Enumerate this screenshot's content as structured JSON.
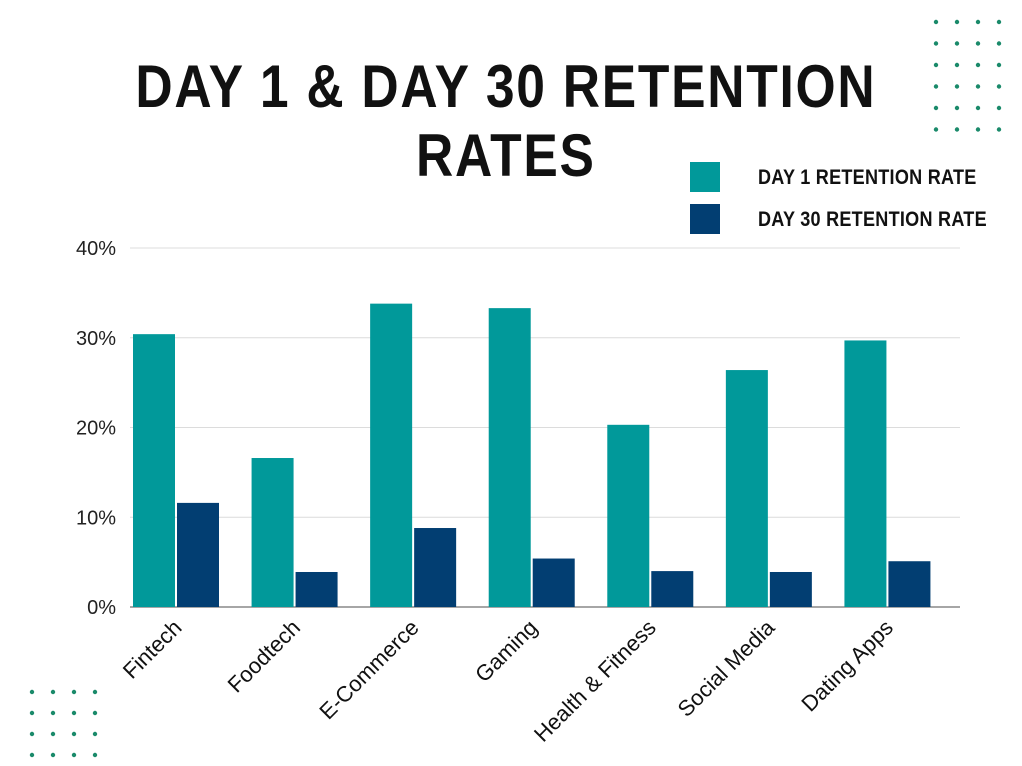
{
  "title": "DAY 1 & DAY 30 RETENTION RATES",
  "colors": {
    "day1": "#01999A",
    "day30": "#023E72",
    "grid": "#dcdcdc",
    "axis": "#888888",
    "dots": "#1a8a6a"
  },
  "legend": {
    "items": [
      {
        "label": "DAY 1 RETENTION RATE",
        "color": "#01999A"
      },
      {
        "label": "DAY 30 RETENTION RATE",
        "color": "#023E72"
      }
    ]
  },
  "chart_data": {
    "type": "bar",
    "categories": [
      "Fintech",
      "Foodtech",
      "E-Commerce",
      "Gaming",
      "Health & Fitness",
      "Social Media",
      "Dating Apps"
    ],
    "series": [
      {
        "name": "DAY 1 RETENTION RATE",
        "values": [
          30.4,
          16.6,
          33.8,
          33.3,
          20.3,
          26.4,
          29.7
        ]
      },
      {
        "name": "DAY 30 RETENTION RATE",
        "values": [
          11.6,
          3.9,
          8.8,
          5.4,
          4.0,
          3.9,
          5.1
        ]
      }
    ],
    "yticks": [
      "0%",
      "10%",
      "20%",
      "30%",
      "40%"
    ],
    "ylim": [
      0,
      40
    ],
    "grid": true,
    "legend_position": "top-right"
  }
}
